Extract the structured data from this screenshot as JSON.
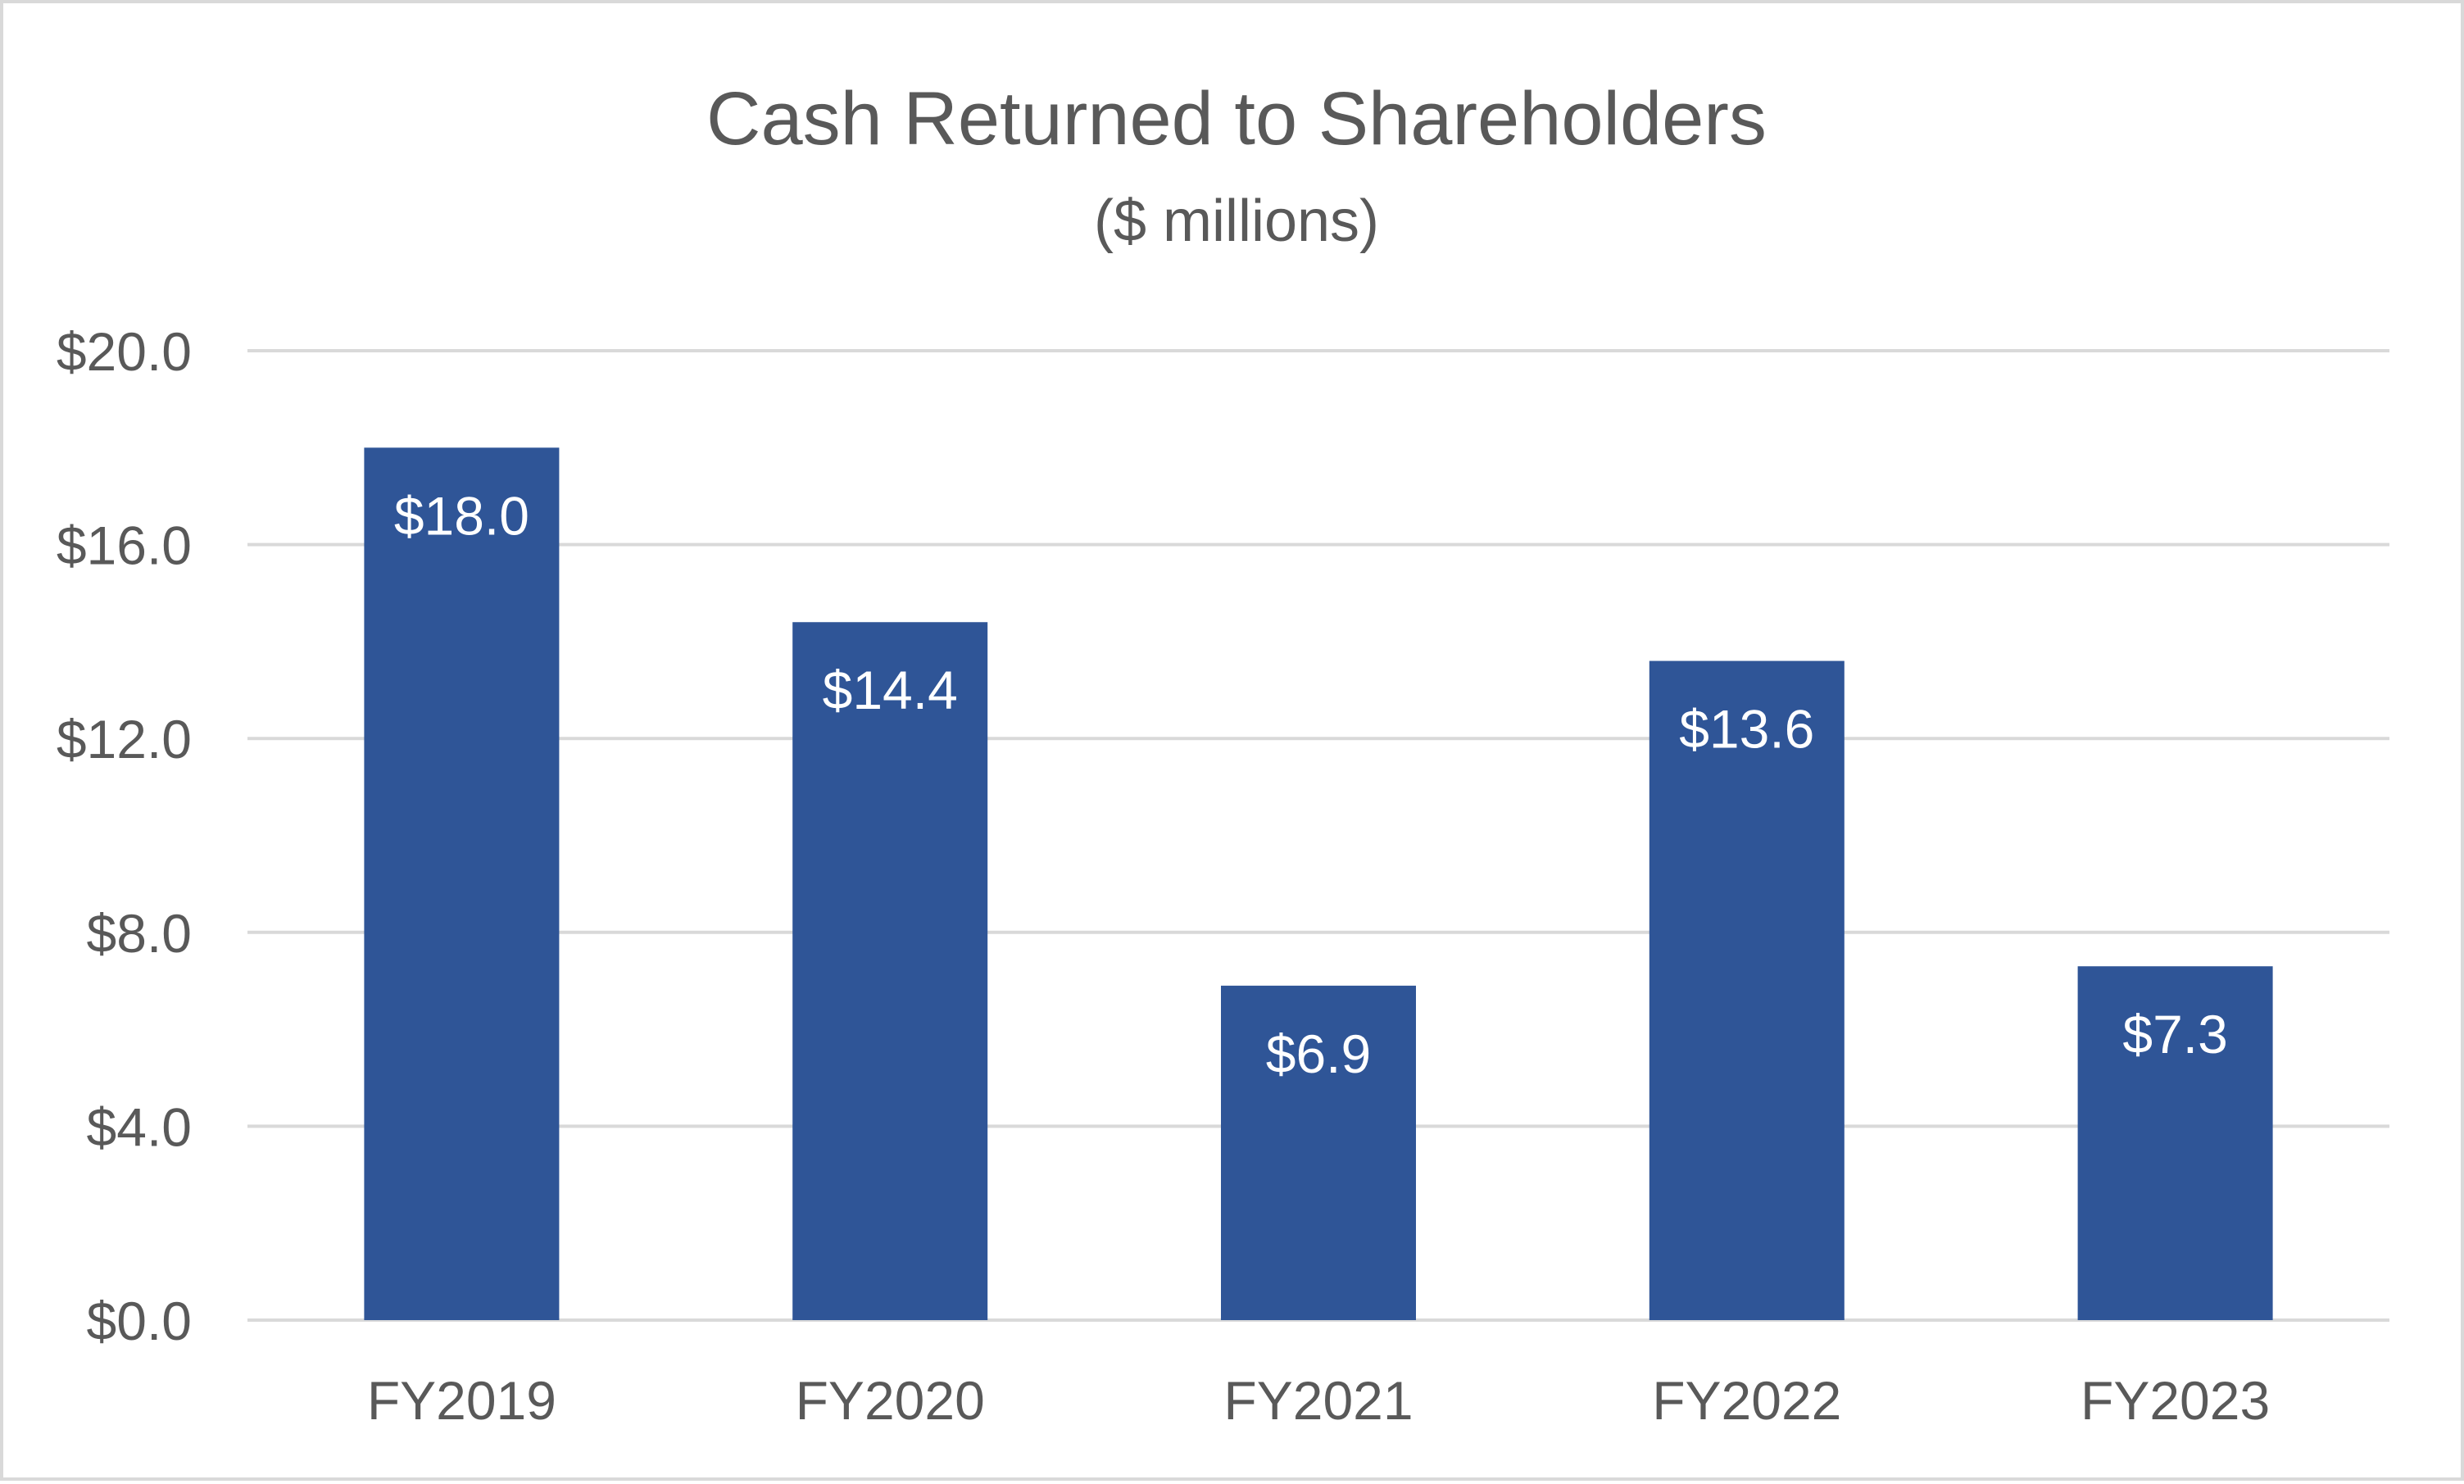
{
  "chart_data": {
    "type": "bar",
    "title": "Cash Returned to Shareholders",
    "subtitle": "($ millions)",
    "categories": [
      "FY2019",
      "FY2020",
      "FY2021",
      "FY2022",
      "FY2023"
    ],
    "values": [
      18.0,
      14.4,
      6.9,
      13.6,
      7.3
    ],
    "data_labels": [
      "$18.0",
      "$14.4",
      "$6.9",
      "$13.6",
      "$7.3"
    ],
    "ylim": [
      0,
      20
    ],
    "yticks": [
      0,
      4,
      8,
      12,
      16,
      20
    ],
    "ytick_labels": [
      "$0.0",
      "$4.0",
      "$8.0",
      "$12.0",
      "$16.0",
      "$20.0"
    ],
    "grid": true,
    "legend": "none",
    "colors": {
      "bar": "#2f5597",
      "data_label": "#ffffff",
      "gridline": "#d9d9d9",
      "text": "#595959"
    }
  }
}
